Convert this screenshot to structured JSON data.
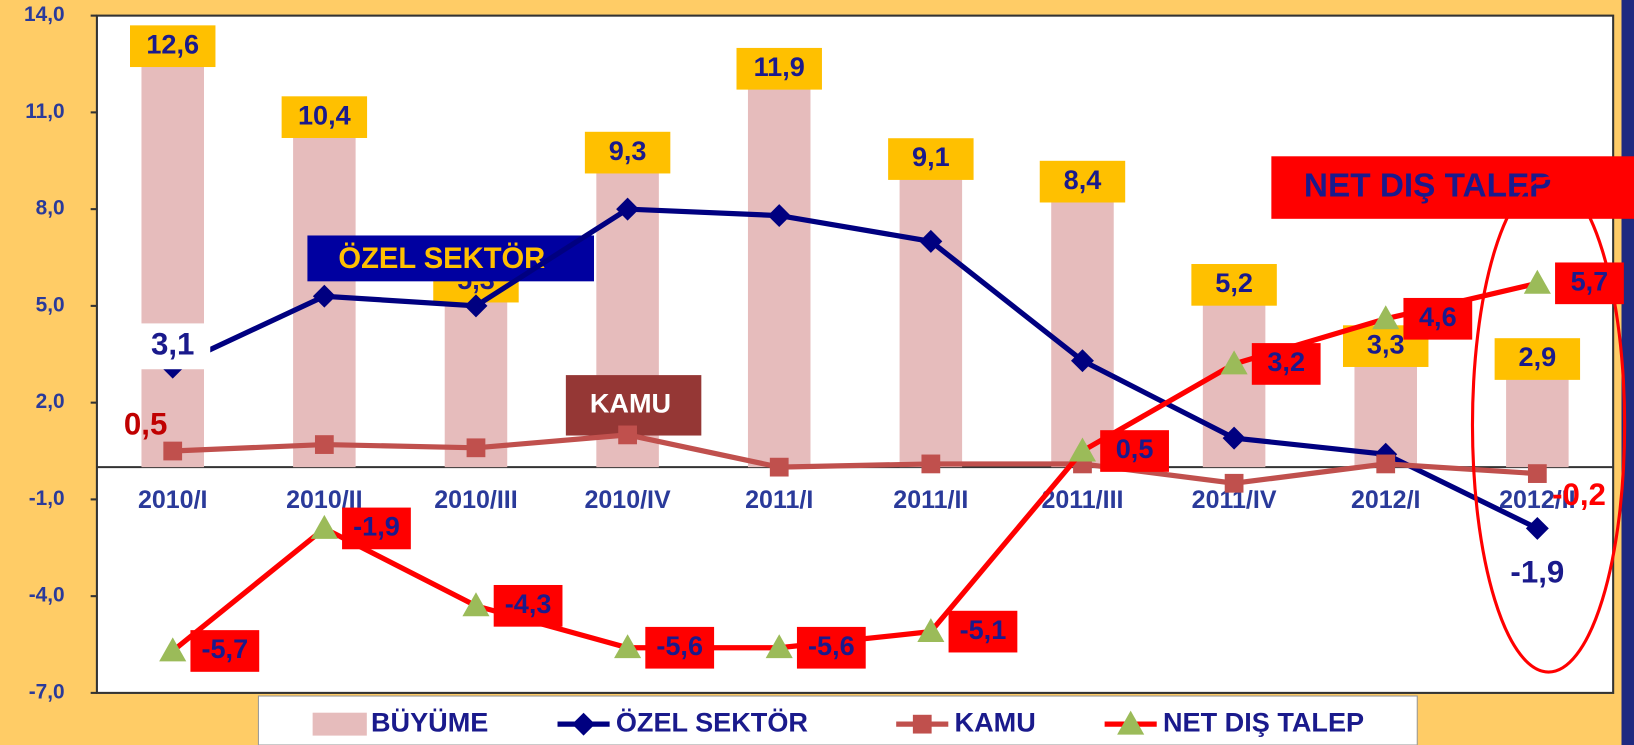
{
  "chart_data": {
    "type": "bar-line",
    "categories": [
      "2010/I",
      "2010/II",
      "2010/III",
      "2010/IV",
      "2011/I",
      "2011/II",
      "2011/III",
      "2011/IV",
      "2012/I",
      "2012/II"
    ],
    "series": [
      {
        "name": "BÜYÜME",
        "kind": "bar",
        "color": "#e6bcbc",
        "values": [
          12.6,
          10.4,
          5.3,
          9.3,
          11.9,
          9.1,
          8.4,
          5.2,
          3.3,
          2.9
        ],
        "value_labels": [
          "12,6",
          "10,4",
          "5,3",
          "9,3",
          "11,9",
          "9,1",
          "8,4",
          "5,2",
          "3,3",
          "2,9"
        ]
      },
      {
        "name": "ÖZEL SEKTÖR",
        "kind": "line",
        "marker": "diamond",
        "color": "#000080",
        "values": [
          3.1,
          5.3,
          5.0,
          8.0,
          7.8,
          7.0,
          3.3,
          0.9,
          0.4,
          -1.9
        ],
        "value_labels": [
          "3,1",
          null,
          null,
          null,
          null,
          null,
          null,
          null,
          null,
          "-1,9"
        ]
      },
      {
        "name": "KAMU",
        "kind": "line",
        "marker": "square",
        "color": "#c0504d",
        "values": [
          0.5,
          0.7,
          0.6,
          1.0,
          0.0,
          0.1,
          0.1,
          -0.5,
          0.1,
          -0.2
        ],
        "value_labels": [
          "0,5",
          null,
          null,
          null,
          null,
          null,
          null,
          null,
          null,
          "-0,2"
        ]
      },
      {
        "name": "NET DIŞ TALEP",
        "kind": "line",
        "marker": "triangle",
        "color": "#ff0000",
        "values": [
          -5.7,
          -1.9,
          -4.3,
          -5.6,
          -5.6,
          -5.1,
          0.5,
          3.2,
          4.6,
          5.7
        ],
        "value_labels": [
          "-5,7",
          "-1,9",
          "-4,3",
          "-5,6",
          "-5,6",
          "-5,1",
          "0,5",
          "3,2",
          "4,6",
          "5,7"
        ]
      }
    ],
    "ylim": [
      -7,
      14
    ],
    "yticks": [
      {
        "value": 14,
        "label": "14,0"
      },
      {
        "value": 11,
        "label": "11,0"
      },
      {
        "value": 8,
        "label": "8,0"
      },
      {
        "value": 5,
        "label": "5,0"
      },
      {
        "value": 2,
        "label": "2,0"
      },
      {
        "value": -1,
        "label": "-1,0"
      },
      {
        "value": -4,
        "label": "-4,0"
      },
      {
        "value": -7,
        "label": "-7,0"
      }
    ],
    "annotations": [
      "ÖZEL SEKTÖR",
      "KAMU",
      "NET DIŞ TALEP"
    ],
    "legend": "bottom"
  }
}
